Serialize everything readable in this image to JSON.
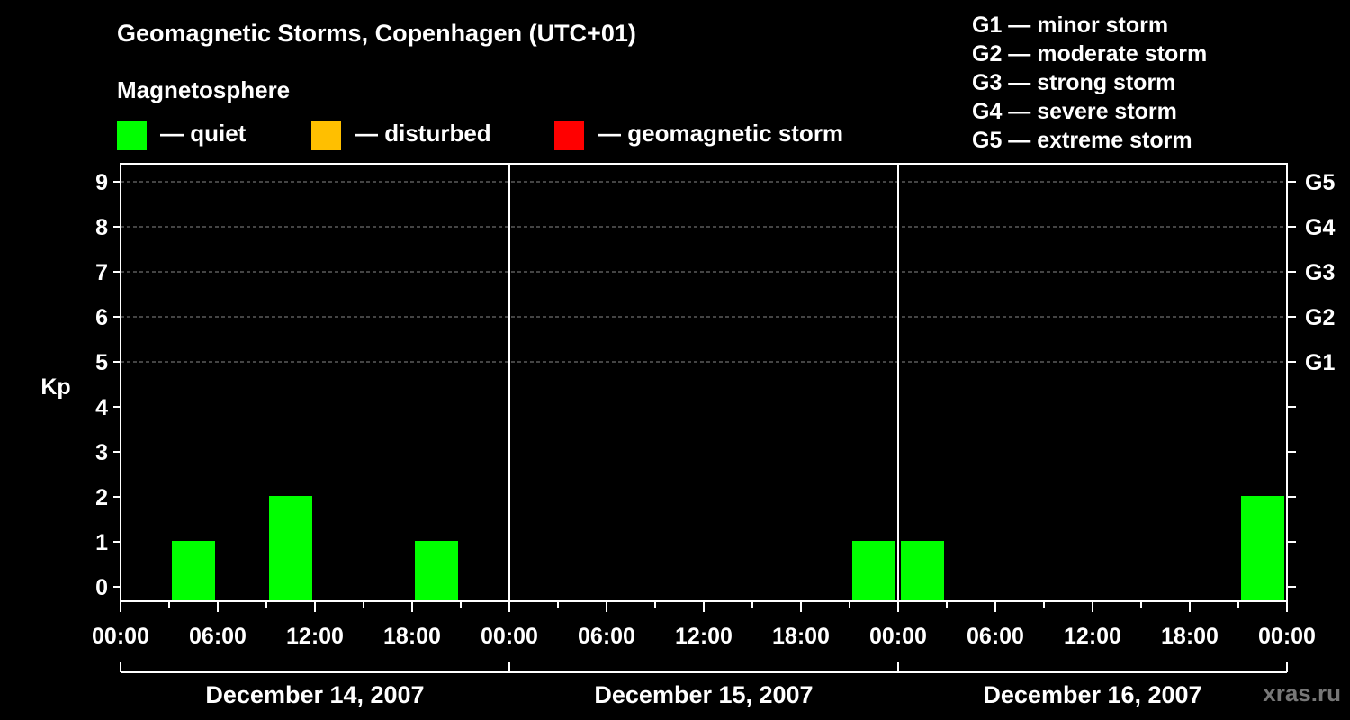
{
  "title": "Geomagnetic Storms, Copenhagen (UTC+01)",
  "legend": {
    "heading": "Magnetosphere",
    "items": [
      {
        "color": "#00ff00",
        "label": "— quiet"
      },
      {
        "color": "#ffbf00",
        "label": "— disturbed"
      },
      {
        "color": "#ff0000",
        "label": "— geomagnetic storm"
      }
    ]
  },
  "storm_scale": [
    "G1 — minor storm",
    "G2 — moderate storm",
    "G3 — strong storm",
    "G4 — severe storm",
    "G5 — extreme storm"
  ],
  "watermark": "xras.ru",
  "chart_data": {
    "type": "bar",
    "ylabel": "Kp",
    "ylim": [
      0,
      9
    ],
    "y_ticks": [
      "0",
      "1",
      "2",
      "3",
      "4",
      "5",
      "6",
      "7",
      "8",
      "9"
    ],
    "right_axis_labels": [
      {
        "kp": 5,
        "label": "G1"
      },
      {
        "kp": 6,
        "label": "G2"
      },
      {
        "kp": 7,
        "label": "G3"
      },
      {
        "kp": 8,
        "label": "G4"
      },
      {
        "kp": 9,
        "label": "G5"
      }
    ],
    "x_tick_labels": [
      "00:00",
      "06:00",
      "12:00",
      "18:00",
      "00:00",
      "06:00",
      "12:00",
      "18:00",
      "00:00",
      "06:00",
      "12:00",
      "18:00",
      "00:00"
    ],
    "days": [
      "December 14, 2007",
      "December 15, 2007",
      "December 16, 2007"
    ],
    "grid": "horizontal dashed at Kp 5-9",
    "bar_width_hours": 3,
    "bars": [
      {
        "day": "December 14, 2007",
        "start": "03:00",
        "kp": 1,
        "status": "quiet"
      },
      {
        "day": "December 14, 2007",
        "start": "09:00",
        "kp": 2,
        "status": "quiet"
      },
      {
        "day": "December 14, 2007",
        "start": "18:00",
        "kp": 1,
        "status": "quiet"
      },
      {
        "day": "December 15, 2007",
        "start": "21:00",
        "kp": 1,
        "status": "quiet"
      },
      {
        "day": "December 16, 2007",
        "start": "00:00",
        "kp": 1,
        "status": "quiet"
      },
      {
        "day": "December 16, 2007",
        "start": "21:00",
        "kp": 2,
        "status": "quiet"
      }
    ],
    "status_colors": {
      "quiet": "#00ff00",
      "disturbed": "#ffbf00",
      "storm": "#ff0000"
    }
  }
}
